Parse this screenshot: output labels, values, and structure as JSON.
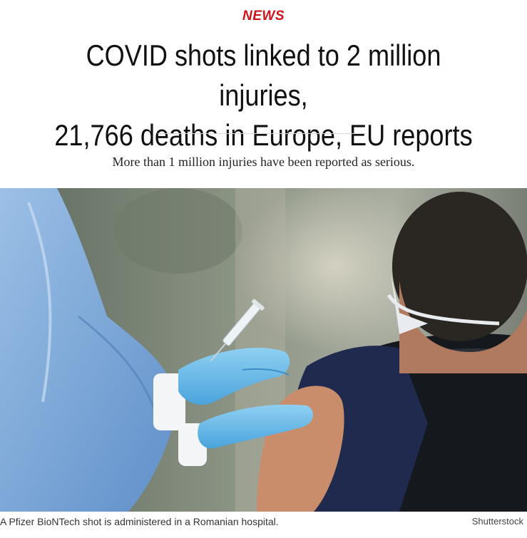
{
  "article": {
    "category": "NEWS",
    "headline_line1": "COVID shots linked to 2 million injuries,",
    "headline_line2": "21,766 deaths in Europe, EU reports",
    "dek": "More than 1 million injuries have been reported as serious."
  },
  "photo": {
    "caption": "A Pfizer BioNTech shot is administered in a Romanian hospital.",
    "credit": "Shutterstock"
  },
  "colors": {
    "category_red": "#d0121b",
    "headline_text": "#111111"
  }
}
